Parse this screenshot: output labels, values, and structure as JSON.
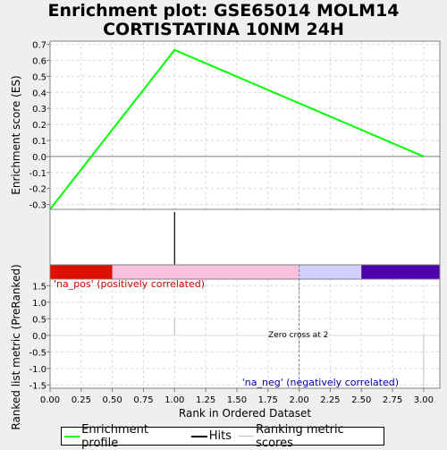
{
  "title": "Enrichment plot: GSE65014 MOLM14\nCORTISTATINA 10NM 24H",
  "title_lines": [
    "Enrichment plot: GSE65014 MOLM14",
    "CORTISTATINA 10NM 24H"
  ],
  "colors": {
    "background": "#efefef",
    "es_line": "#00ff00",
    "hits": "#000000",
    "metric": "#c0c0c0",
    "grid": "#d9d9d9",
    "pos_text": "#cc0000",
    "neg_text": "#0000aa",
    "bar_segments": [
      "#dd1100",
      "#f9c0e0",
      "#d0d0ff",
      "#5000aa"
    ]
  },
  "chart_data": [
    {
      "type": "line",
      "panel": "enrichment",
      "ylabel": "Enrichment score (ES)",
      "ylim": [
        -0.33,
        0.72
      ],
      "yticks": [
        -0.3,
        -0.2,
        -0.1,
        0.0,
        0.1,
        0.2,
        0.3,
        0.4,
        0.5,
        0.6,
        0.7
      ],
      "ytick_labels": [
        "-0.3",
        "-0.2",
        "-0.1",
        "0.0",
        "0.1",
        "0.2",
        "0.3",
        "0.4",
        "0.5",
        "0.6",
        "0.7"
      ],
      "grid": true,
      "series": [
        {
          "x": [
            0,
            1,
            3
          ],
          "y": [
            -0.33,
            0.665,
            0.0
          ]
        }
      ]
    },
    {
      "type": "bar",
      "panel": "hits",
      "hits_x": [
        1
      ]
    },
    {
      "type": "heatmap",
      "panel": "ranking-color-bar",
      "segments": [
        {
          "from": 0.0,
          "to": 0.5
        },
        {
          "from": 0.5,
          "to": 2.0
        },
        {
          "from": 2.0,
          "to": 2.5
        },
        {
          "from": 2.5,
          "to": 3.13
        }
      ]
    },
    {
      "type": "bar",
      "panel": "ranked-metric",
      "xlabel": "Rank in Ordered Dataset",
      "ylabel": "Ranked list metric (PreRanked)",
      "xlim": [
        0,
        3.13
      ],
      "ylim": [
        -1.6,
        1.7
      ],
      "xticks": [
        0.0,
        0.25,
        0.5,
        0.75,
        1.0,
        1.25,
        1.5,
        1.75,
        2.0,
        2.25,
        2.5,
        2.75,
        3.0
      ],
      "xtick_labels": [
        "0.00",
        "0.25",
        "0.50",
        "0.75",
        "1.00",
        "1.25",
        "1.50",
        "1.75",
        "2.00",
        "2.25",
        "2.50",
        "2.75",
        "3.00"
      ],
      "yticks": [
        -1.5,
        -1.0,
        -0.5,
        0.0,
        0.5,
        1.0,
        1.5
      ],
      "ytick_labels": [
        "-1.5",
        "-1.0",
        "-0.5",
        "0.0",
        "0.5",
        "1.0",
        "1.5"
      ],
      "grid": true,
      "metric_bars": [
        {
          "x": 1,
          "value": 0.0
        },
        {
          "x": 3,
          "value": -1.6
        }
      ],
      "zero_cross": 2,
      "annotations": {
        "pos": "'na_pos' (positively correlated)",
        "neg": "'na_neg' (negatively correlated)",
        "zero_cross": "Zero cross at 2"
      }
    }
  ],
  "legend": {
    "items": [
      {
        "label": "Enrichment profile",
        "icon": "green-line"
      },
      {
        "label": "Hits",
        "icon": "black-line"
      },
      {
        "label": "Ranking metric scores",
        "icon": "gray-line"
      }
    ]
  }
}
